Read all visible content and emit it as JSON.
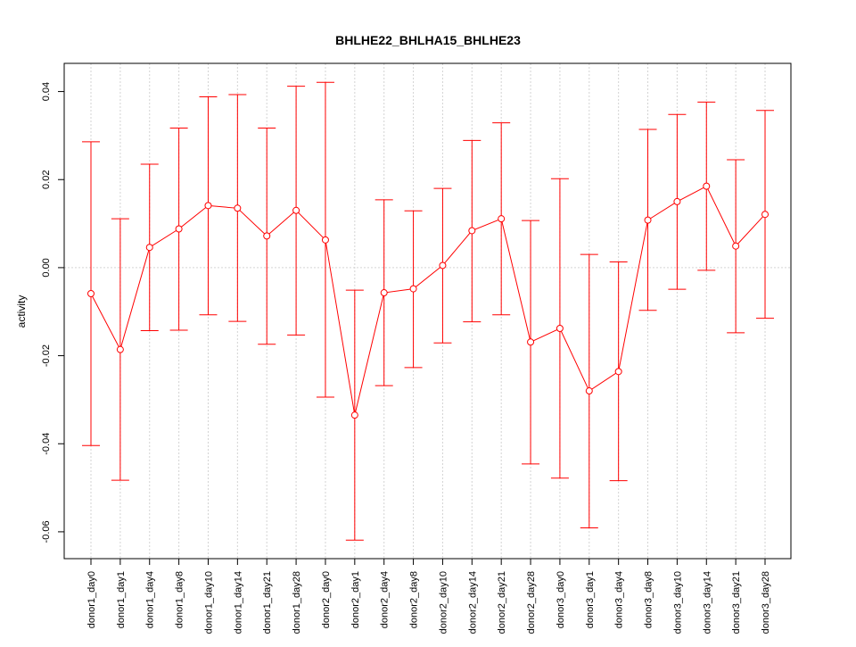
{
  "chart_data": {
    "type": "line",
    "title": "BHLHE22_BHLHA15_BHLHE23",
    "xlabel": "",
    "ylabel": "activity",
    "ylim": [
      -0.0661,
      0.0464
    ],
    "yticks": [
      -0.06,
      -0.04,
      -0.02,
      0.0,
      0.02,
      0.04
    ],
    "ytick_labels": [
      "-0.06",
      "-0.04",
      "-0.02",
      "0.00",
      "0.02",
      "0.04"
    ],
    "grid": true,
    "color": "#ff0000",
    "categories": [
      "donor1_day0",
      "donor1_day1",
      "donor1_day4",
      "donor1_day8",
      "donor1_day10",
      "donor1_day14",
      "donor1_day21",
      "donor1_day28",
      "donor2_day0",
      "donor2_day1",
      "donor2_day4",
      "donor2_day8",
      "donor2_day10",
      "donor2_day14",
      "donor2_day21",
      "donor2_day28",
      "donor3_day0",
      "donor3_day1",
      "donor3_day4",
      "donor3_day8",
      "donor3_day10",
      "donor3_day14",
      "donor3_day21",
      "donor3_day28"
    ],
    "values": [
      -0.0059,
      -0.0186,
      0.0046,
      0.0088,
      0.0141,
      0.0135,
      0.0072,
      0.013,
      0.0063,
      -0.0335,
      -0.0057,
      -0.0048,
      0.0005,
      0.0084,
      0.0111,
      -0.0169,
      -0.0138,
      -0.028,
      -0.0236,
      0.0108,
      0.015,
      0.0185,
      0.0049,
      0.0121
    ],
    "upper": [
      0.0286,
      0.0111,
      0.0235,
      0.0317,
      0.0388,
      0.0393,
      0.0317,
      0.0412,
      0.0421,
      -0.0051,
      0.0154,
      0.0129,
      0.018,
      0.0289,
      0.0329,
      0.0107,
      0.0202,
      0.003,
      0.0013,
      0.0314,
      0.0348,
      0.0376,
      0.0245,
      0.0357
    ],
    "lower": [
      -0.0404,
      -0.0483,
      -0.0143,
      -0.0142,
      -0.0107,
      -0.0122,
      -0.0174,
      -0.0153,
      -0.0294,
      -0.0619,
      -0.0268,
      -0.0227,
      -0.0171,
      -0.0123,
      -0.0107,
      -0.0446,
      -0.0478,
      -0.0591,
      -0.0484,
      -0.0097,
      -0.0049,
      -0.0006,
      -0.0148,
      -0.0115
    ]
  }
}
